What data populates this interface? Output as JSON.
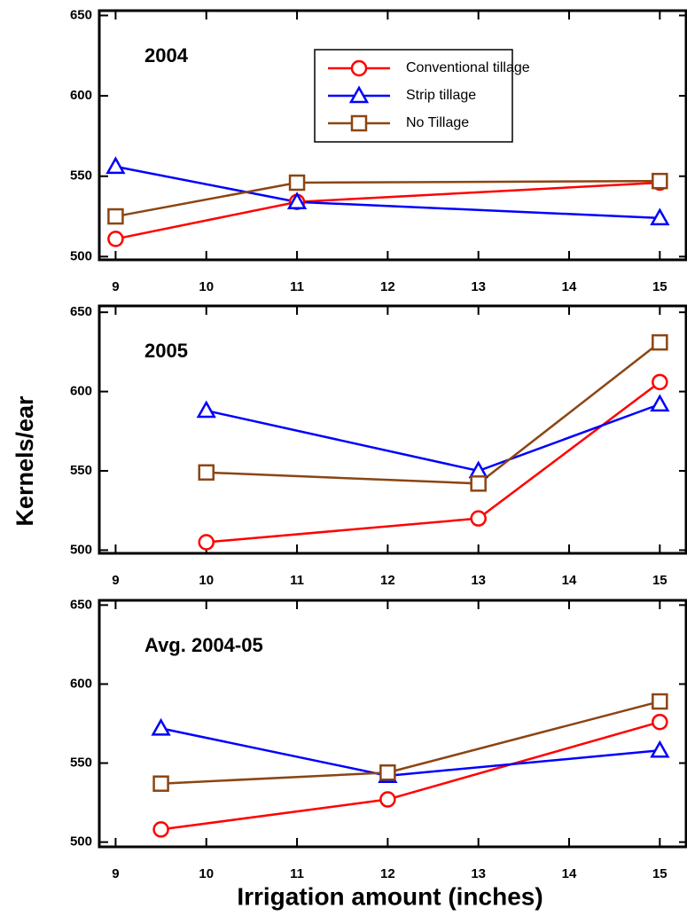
{
  "ylabel": "Kernels/ear",
  "xlabel": "Irrigation amount (inches)",
  "chart_data": [
    {
      "type": "line",
      "title": "2004",
      "x": [
        9,
        11,
        15
      ],
      "xlim": [
        8.82,
        15.29
      ],
      "xticks": [
        9,
        10,
        11,
        12,
        13,
        14,
        15
      ],
      "ylim": [
        498,
        653
      ],
      "yticks": [
        500,
        550,
        600,
        650
      ],
      "legend": "upper center",
      "series": [
        {
          "name": "Conventional tillage",
          "color": "#ff0000",
          "marker": "circle",
          "values": [
            511,
            534,
            546
          ]
        },
        {
          "name": "Strip tillage",
          "color": "#0000ff",
          "marker": "triangle",
          "values": [
            556,
            534,
            524
          ]
        },
        {
          "name": "No Tillage",
          "color": "#8b4513",
          "marker": "square",
          "values": [
            525,
            546,
            547
          ]
        }
      ]
    },
    {
      "type": "line",
      "title": "2005",
      "x": [
        10,
        13,
        15
      ],
      "xlim": [
        8.82,
        15.29
      ],
      "xticks": [
        9,
        10,
        11,
        12,
        13,
        14,
        15
      ],
      "ylim": [
        498,
        654
      ],
      "yticks": [
        500,
        550,
        600,
        650
      ],
      "series": [
        {
          "color": "#ff0000",
          "marker": "circle",
          "values": [
            505,
            520,
            606
          ]
        },
        {
          "color": "#0000ff",
          "marker": "triangle",
          "values": [
            588,
            550,
            592
          ]
        },
        {
          "color": "#8b4513",
          "marker": "square",
          "values": [
            549,
            542,
            631
          ]
        }
      ]
    },
    {
      "type": "line",
      "title": "Avg. 2004-05",
      "x": [
        9.5,
        12,
        15
      ],
      "xlim": [
        8.82,
        15.29
      ],
      "xticks": [
        9,
        10,
        11,
        12,
        13,
        14,
        15
      ],
      "ylim": [
        497,
        653
      ],
      "yticks": [
        500,
        550,
        600,
        650
      ],
      "series": [
        {
          "color": "#ff0000",
          "marker": "circle",
          "values": [
            508,
            527,
            576
          ]
        },
        {
          "color": "#0000ff",
          "marker": "triangle",
          "values": [
            572,
            542,
            558
          ]
        },
        {
          "color": "#8b4513",
          "marker": "square",
          "values": [
            537,
            544,
            589
          ]
        }
      ]
    }
  ]
}
